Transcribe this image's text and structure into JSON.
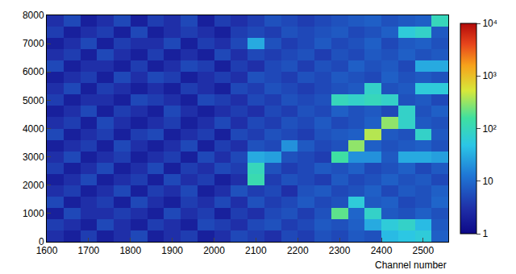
{
  "chart_data": {
    "type": "heatmap",
    "x_label": "Channel number",
    "x": [
      1620,
      1660,
      1700,
      1740,
      1780,
      1820,
      1860,
      1900,
      1940,
      1980,
      2020,
      2060,
      2100,
      2140,
      2180,
      2220,
      2260,
      2300,
      2340,
      2380,
      2420,
      2460,
      2500,
      2540
    ],
    "y": [
      200,
      600,
      1000,
      1400,
      1800,
      2200,
      2600,
      3000,
      3400,
      3800,
      4200,
      4600,
      5000,
      5400,
      5800,
      6200,
      6600,
      7000,
      7400,
      7800
    ],
    "z": [
      [
        3,
        2,
        4,
        2,
        3,
        5,
        2,
        3,
        4,
        2,
        3,
        5,
        4,
        3,
        5,
        4,
        6,
        5,
        7,
        6,
        40,
        50,
        60,
        8
      ],
      [
        4,
        3,
        2,
        5,
        3,
        2,
        4,
        3,
        2,
        5,
        4,
        3,
        5,
        6,
        4,
        5,
        7,
        6,
        8,
        30,
        60,
        80,
        40,
        7
      ],
      [
        2,
        5,
        3,
        3,
        4,
        3,
        2,
        5,
        3,
        4,
        2,
        4,
        3,
        5,
        6,
        4,
        6,
        200,
        9,
        80,
        7,
        6,
        8,
        6
      ],
      [
        5,
        2,
        3,
        4,
        2,
        5,
        3,
        2,
        4,
        3,
        5,
        3,
        6,
        4,
        5,
        7,
        5,
        6,
        60,
        7,
        8,
        5,
        6,
        9
      ],
      [
        3,
        4,
        2,
        3,
        5,
        2,
        4,
        3,
        5,
        2,
        3,
        6,
        4,
        5,
        3,
        6,
        7,
        5,
        6,
        8,
        5,
        7,
        6,
        8
      ],
      [
        2,
        3,
        5,
        2,
        3,
        4,
        2,
        5,
        3,
        4,
        2,
        3,
        120,
        4,
        6,
        5,
        4,
        7,
        5,
        6,
        8,
        6,
        7,
        5
      ],
      [
        4,
        2,
        3,
        5,
        2,
        3,
        5,
        2,
        4,
        3,
        5,
        4,
        100,
        6,
        4,
        5,
        7,
        6,
        8,
        5,
        6,
        8,
        5,
        7
      ],
      [
        3,
        5,
        2,
        3,
        4,
        2,
        3,
        4,
        2,
        5,
        3,
        5,
        30,
        25,
        6,
        5,
        4,
        150,
        20,
        20,
        7,
        30,
        30,
        25
      ],
      [
        2,
        3,
        4,
        2,
        5,
        3,
        2,
        3,
        5,
        2,
        4,
        3,
        6,
        5,
        20,
        7,
        5,
        6,
        300,
        8,
        6,
        7,
        8,
        6
      ],
      [
        5,
        2,
        3,
        4,
        2,
        4,
        5,
        2,
        3,
        4,
        2,
        5,
        4,
        6,
        5,
        4,
        6,
        7,
        8,
        400,
        7,
        6,
        80,
        7
      ],
      [
        3,
        4,
        2,
        5,
        3,
        2,
        3,
        4,
        2,
        3,
        5,
        3,
        5,
        4,
        6,
        5,
        7,
        5,
        6,
        8,
        300,
        80,
        7,
        6
      ],
      [
        2,
        3,
        5,
        2,
        4,
        3,
        2,
        5,
        3,
        2,
        3,
        4,
        3,
        5,
        4,
        6,
        5,
        8,
        6,
        7,
        5,
        80,
        6,
        8
      ],
      [
        4,
        2,
        3,
        3,
        2,
        5,
        4,
        3,
        2,
        5,
        4,
        3,
        5,
        4,
        6,
        5,
        6,
        100,
        80,
        100,
        80,
        6,
        7,
        5
      ],
      [
        3,
        5,
        2,
        4,
        3,
        2,
        3,
        2,
        4,
        3,
        2,
        5,
        4,
        6,
        5,
        4,
        5,
        6,
        7,
        80,
        6,
        7,
        60,
        60
      ],
      [
        2,
        3,
        4,
        2,
        5,
        3,
        5,
        4,
        2,
        3,
        4,
        3,
        6,
        5,
        4,
        6,
        5,
        7,
        6,
        5,
        8,
        6,
        7,
        6
      ],
      [
        5,
        2,
        3,
        3,
        2,
        4,
        2,
        3,
        5,
        4,
        2,
        4,
        3,
        5,
        6,
        4,
        6,
        5,
        8,
        6,
        7,
        5,
        30,
        30
      ],
      [
        3,
        4,
        2,
        5,
        3,
        2,
        4,
        2,
        3,
        2,
        5,
        3,
        5,
        4,
        5,
        6,
        4,
        6,
        5,
        7,
        6,
        8,
        6,
        7
      ],
      [
        2,
        3,
        5,
        2,
        4,
        3,
        3,
        5,
        2,
        4,
        3,
        5,
        30,
        6,
        4,
        5,
        7,
        5,
        6,
        8,
        5,
        7,
        8,
        6
      ],
      [
        4,
        2,
        3,
        4,
        2,
        5,
        2,
        3,
        4,
        3,
        2,
        4,
        5,
        4,
        6,
        5,
        6,
        7,
        5,
        6,
        8,
        60,
        80,
        7
      ],
      [
        3,
        5,
        2,
        3,
        5,
        2,
        4,
        3,
        5,
        2,
        4,
        3,
        4,
        6,
        5,
        4,
        5,
        6,
        7,
        8,
        6,
        7,
        8,
        100
      ]
    ],
    "xlim": [
      1600,
      2560
    ],
    "ylim": [
      0,
      8000
    ],
    "xticks": [
      1600,
      1700,
      1800,
      1900,
      2000,
      2100,
      2200,
      2300,
      2400,
      2500
    ],
    "yticks": [
      0,
      1000,
      2000,
      3000,
      4000,
      5000,
      6000,
      7000,
      8000
    ],
    "colorbar": {
      "range": [
        1,
        10000
      ],
      "log": true,
      "ticks": [
        1,
        10,
        {
          "value": 100,
          "label": "10²"
        },
        {
          "value": 1000,
          "label": "10³"
        },
        {
          "value": 10000,
          "label": "10⁴"
        }
      ]
    }
  }
}
